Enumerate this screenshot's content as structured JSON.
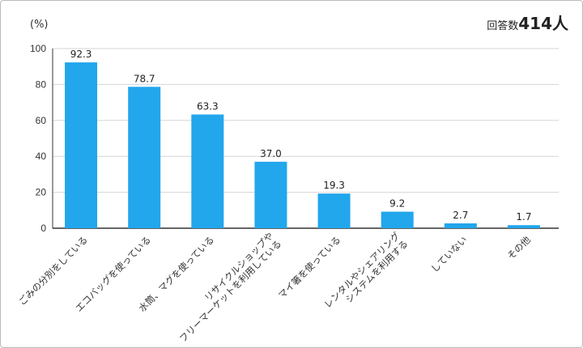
{
  "chart_data": {
    "type": "bar",
    "unit_label": "(%)",
    "respondents": {
      "label": "回答数",
      "value": "414人"
    },
    "ylim": [
      0,
      100
    ],
    "yticks": [
      "0",
      "20",
      "40",
      "60",
      "80",
      "100"
    ],
    "grid": true,
    "bar_color": "#22a6ec",
    "categories": [
      [
        "ごみの分別をしている"
      ],
      [
        "エコバッグを使っている"
      ],
      [
        "水筒、マグを使っている"
      ],
      [
        "リサイクルショップや",
        "フリーマーケットを利用している"
      ],
      [
        "マイ箸を使っている"
      ],
      [
        "レンタルやシェアリング",
        "システムを利用する"
      ],
      [
        "していない"
      ],
      [
        "その他"
      ]
    ],
    "values": [
      92.3,
      78.7,
      63.3,
      37.0,
      19.3,
      9.2,
      2.7,
      1.7
    ],
    "value_labels": [
      "92.3",
      "78.7",
      "63.3",
      "37.0",
      "19.3",
      "9.2",
      "2.7",
      "1.7"
    ]
  }
}
